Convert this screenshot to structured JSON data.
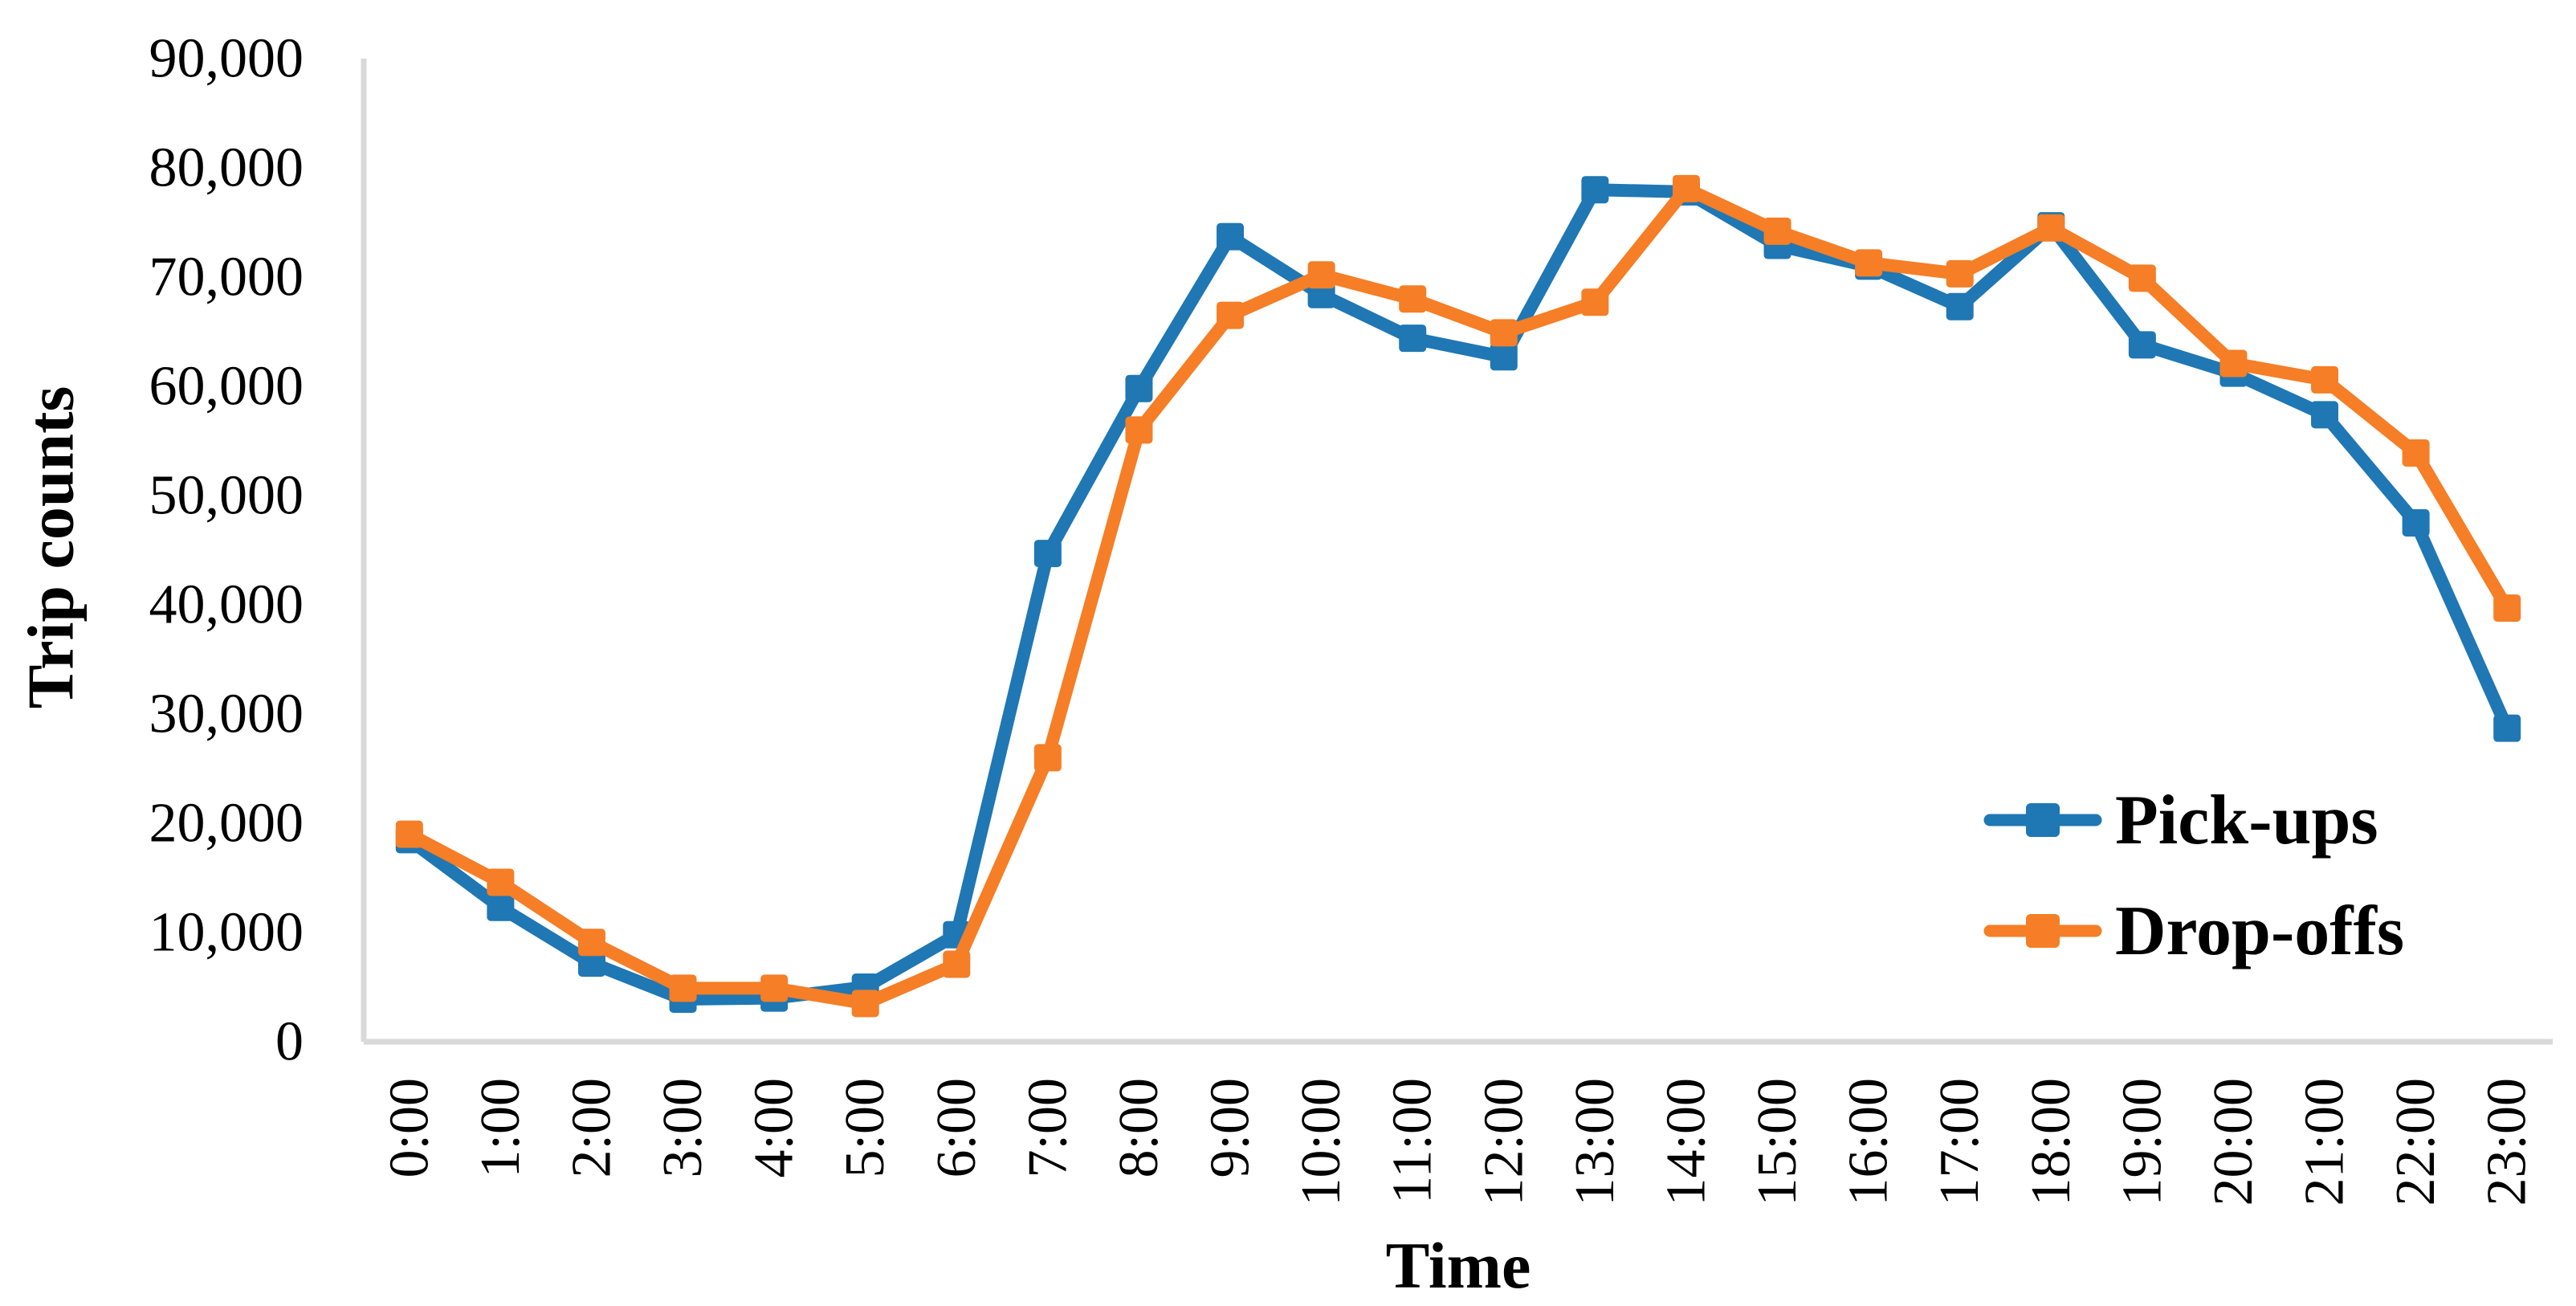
{
  "chart_data": {
    "type": "line",
    "title": "",
    "xlabel": "Time",
    "ylabel": "Trip counts",
    "categories": [
      "0:00",
      "1:00",
      "2:00",
      "3:00",
      "4:00",
      "5:00",
      "6:00",
      "7:00",
      "8:00",
      "9:00",
      "10:00",
      "11:00",
      "12:00",
      "13:00",
      "14:00",
      "15:00",
      "16:00",
      "17:00",
      "18:00",
      "19:00",
      "20:00",
      "21:00",
      "22:00",
      "23:00"
    ],
    "series": [
      {
        "name": "Pick-ups",
        "color": "#1F77B4",
        "marker": "square",
        "values": [
          18500,
          12300,
          7200,
          3900,
          4000,
          5000,
          9800,
          44700,
          59800,
          73700,
          68400,
          64400,
          62700,
          78000,
          77800,
          72900,
          71000,
          67300,
          74700,
          63800,
          61200,
          57400,
          47500,
          28700
        ]
      },
      {
        "name": "Drop-offs",
        "color": "#F57E26",
        "marker": "square",
        "values": [
          19000,
          14600,
          9100,
          4900,
          4900,
          3500,
          7100,
          26000,
          56000,
          66500,
          70200,
          68000,
          64900,
          67700,
          78100,
          74200,
          71300,
          70300,
          74500,
          69900,
          62100,
          60600,
          53900,
          39700
        ]
      }
    ],
    "ylim": [
      0,
      90000
    ],
    "ytick_values": [
      0,
      10000,
      20000,
      30000,
      40000,
      50000,
      60000,
      70000,
      80000,
      90000
    ],
    "ytick_labels": [
      "0",
      "10,000",
      "20,000",
      "30,000",
      "40,000",
      "50,000",
      "60,000",
      "70,000",
      "80,000",
      "90,000"
    ],
    "grid": false,
    "legend_position": "inside-lower-right",
    "axis_line_color": "#D9D9D9"
  }
}
